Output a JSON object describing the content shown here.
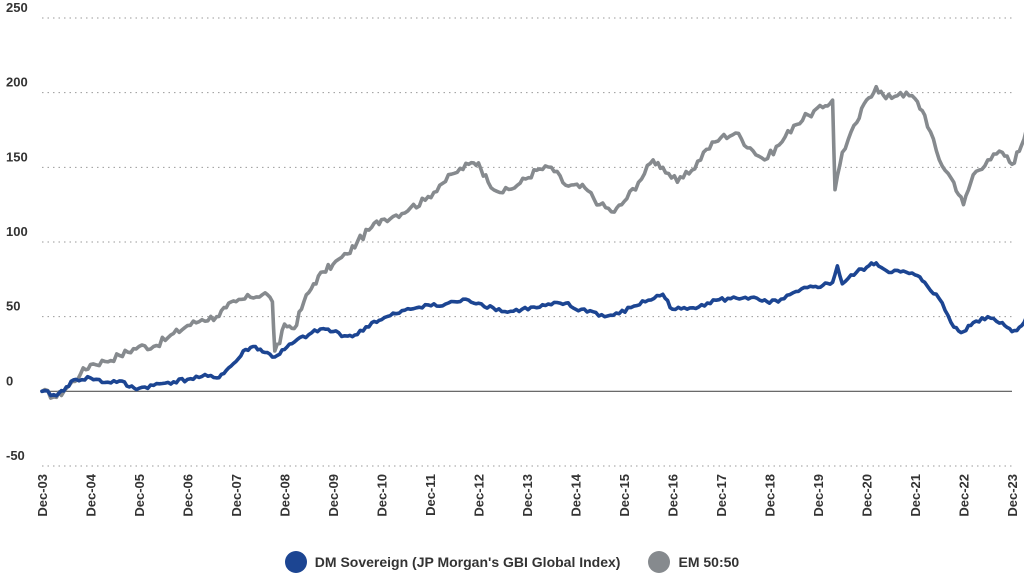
{
  "chart_data": {
    "type": "line",
    "x_categories": [
      "Dec-03",
      "Dec-04",
      "Dec-05",
      "Dec-06",
      "Dec-07",
      "Dec-08",
      "Dec-09",
      "Dec-10",
      "Dec-11",
      "Dec-12",
      "Dec-13",
      "Dec-14",
      "Dec-15",
      "Dec-16",
      "Dec-17",
      "Dec-18",
      "Dec-19",
      "Dec-20",
      "Dec-21",
      "Dec-22",
      "Dec-23"
    ],
    "y_ticks": [
      -50,
      0,
      50,
      100,
      150,
      200,
      250
    ],
    "ylim": [
      -50,
      250
    ],
    "grid": "horizontal-dotted",
    "zero_line": true,
    "legend_position": "bottom",
    "series": [
      {
        "name": "DM Sovereign (JP Morgan's GBI Global Index)",
        "color": "#1c4592",
        "points": [
          [
            0,
            0
          ],
          [
            0.3,
            -3
          ],
          [
            0.5,
            3
          ],
          [
            0.7,
            8
          ],
          [
            1.0,
            9
          ],
          [
            1.3,
            6
          ],
          [
            1.6,
            7
          ],
          [
            1.8,
            3
          ],
          [
            2.0,
            2
          ],
          [
            2.3,
            4
          ],
          [
            2.6,
            6
          ],
          [
            3.0,
            8
          ],
          [
            3.3,
            10
          ],
          [
            3.6,
            9
          ],
          [
            3.8,
            14
          ],
          [
            4.0,
            20
          ],
          [
            4.2,
            28
          ],
          [
            4.4,
            30
          ],
          [
            4.6,
            26
          ],
          [
            4.8,
            23
          ],
          [
            5.0,
            28
          ],
          [
            5.2,
            33
          ],
          [
            5.5,
            38
          ],
          [
            5.8,
            42
          ],
          [
            6.0,
            40
          ],
          [
            6.3,
            37
          ],
          [
            6.5,
            38
          ],
          [
            6.8,
            46
          ],
          [
            7.0,
            48
          ],
          [
            7.3,
            52
          ],
          [
            7.6,
            55
          ],
          [
            7.9,
            58
          ],
          [
            8.2,
            57
          ],
          [
            8.5,
            60
          ],
          [
            8.8,
            61
          ],
          [
            9.0,
            59
          ],
          [
            9.3,
            56
          ],
          [
            9.6,
            53
          ],
          [
            9.9,
            55
          ],
          [
            10.2,
            56
          ],
          [
            10.5,
            58
          ],
          [
            10.8,
            59
          ],
          [
            11.0,
            55
          ],
          [
            11.3,
            54
          ],
          [
            11.6,
            50
          ],
          [
            11.9,
            52
          ],
          [
            12.2,
            57
          ],
          [
            12.5,
            61
          ],
          [
            12.8,
            65
          ],
          [
            13.0,
            55
          ],
          [
            13.3,
            55
          ],
          [
            13.6,
            58
          ],
          [
            13.9,
            61
          ],
          [
            14.2,
            62
          ],
          [
            14.5,
            63
          ],
          [
            14.8,
            61
          ],
          [
            15.0,
            59
          ],
          [
            15.3,
            62
          ],
          [
            15.6,
            67
          ],
          [
            15.9,
            70
          ],
          [
            16.1,
            71
          ],
          [
            16.3,
            73
          ],
          [
            16.4,
            84
          ],
          [
            16.5,
            72
          ],
          [
            16.8,
            80
          ],
          [
            17.0,
            83
          ],
          [
            17.2,
            86
          ],
          [
            17.4,
            81
          ],
          [
            17.7,
            80
          ],
          [
            18.0,
            78
          ],
          [
            18.2,
            73
          ],
          [
            18.5,
            62
          ],
          [
            18.8,
            43
          ],
          [
            19.0,
            40
          ],
          [
            19.2,
            46
          ],
          [
            19.5,
            50
          ],
          [
            19.8,
            46
          ],
          [
            20.0,
            40
          ],
          [
            20.2,
            44
          ],
          [
            20.3,
            50
          ]
        ]
      },
      {
        "name": "EM 50:50",
        "color": "#868a8e",
        "points": [
          [
            0,
            0
          ],
          [
            0.3,
            -4
          ],
          [
            0.5,
            2
          ],
          [
            0.8,
            12
          ],
          [
            1.0,
            18
          ],
          [
            1.3,
            20
          ],
          [
            1.6,
            24
          ],
          [
            2.0,
            30
          ],
          [
            2.3,
            30
          ],
          [
            2.6,
            36
          ],
          [
            3.0,
            44
          ],
          [
            3.3,
            48
          ],
          [
            3.6,
            50
          ],
          [
            3.8,
            56
          ],
          [
            4.0,
            60
          ],
          [
            4.3,
            63
          ],
          [
            4.6,
            66
          ],
          [
            4.75,
            60
          ],
          [
            4.8,
            27
          ],
          [
            4.9,
            32
          ],
          [
            5.0,
            45
          ],
          [
            5.2,
            42
          ],
          [
            5.4,
            60
          ],
          [
            5.6,
            72
          ],
          [
            5.8,
            80
          ],
          [
            6.0,
            85
          ],
          [
            6.3,
            92
          ],
          [
            6.5,
            100
          ],
          [
            6.8,
            110
          ],
          [
            7.0,
            115
          ],
          [
            7.3,
            118
          ],
          [
            7.6,
            123
          ],
          [
            7.9,
            128
          ],
          [
            8.2,
            138
          ],
          [
            8.5,
            146
          ],
          [
            8.8,
            152
          ],
          [
            9.0,
            153
          ],
          [
            9.2,
            140
          ],
          [
            9.5,
            133
          ],
          [
            9.8,
            138
          ],
          [
            10.2,
            148
          ],
          [
            10.5,
            150
          ],
          [
            10.8,
            138
          ],
          [
            11.2,
            136
          ],
          [
            11.5,
            125
          ],
          [
            11.8,
            120
          ],
          [
            12.0,
            127
          ],
          [
            12.3,
            140
          ],
          [
            12.6,
            155
          ],
          [
            12.8,
            150
          ],
          [
            13.1,
            140
          ],
          [
            13.4,
            148
          ],
          [
            13.7,
            162
          ],
          [
            14.0,
            170
          ],
          [
            14.3,
            173
          ],
          [
            14.6,
            163
          ],
          [
            14.9,
            155
          ],
          [
            15.2,
            165
          ],
          [
            15.5,
            178
          ],
          [
            15.8,
            185
          ],
          [
            16.1,
            190
          ],
          [
            16.3,
            195
          ],
          [
            16.35,
            135
          ],
          [
            16.5,
            160
          ],
          [
            16.8,
            180
          ],
          [
            17.0,
            195
          ],
          [
            17.2,
            204
          ],
          [
            17.4,
            196
          ],
          [
            17.7,
            200
          ],
          [
            18.0,
            196
          ],
          [
            18.2,
            185
          ],
          [
            18.5,
            155
          ],
          [
            18.8,
            140
          ],
          [
            19.0,
            125
          ],
          [
            19.2,
            145
          ],
          [
            19.5,
            155
          ],
          [
            19.8,
            160
          ],
          [
            20.0,
            152
          ],
          [
            20.2,
            165
          ],
          [
            20.3,
            176
          ]
        ]
      }
    ]
  }
}
